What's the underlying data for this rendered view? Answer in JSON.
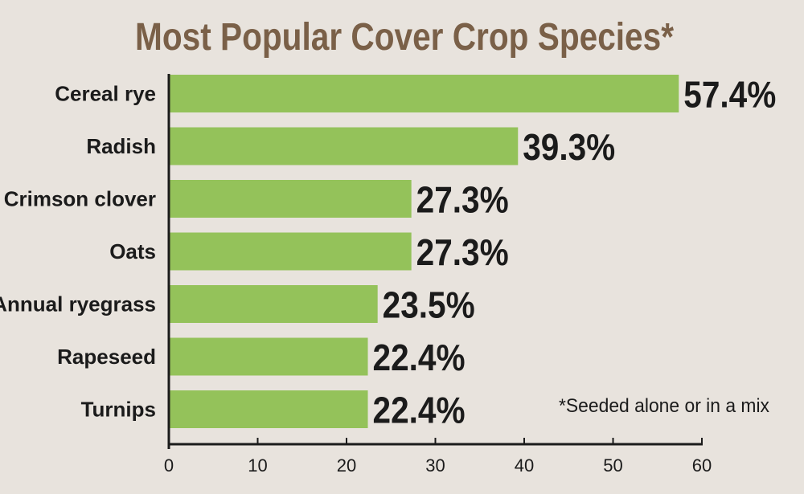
{
  "chart_data": {
    "type": "bar",
    "orientation": "horizontal",
    "title": "Most Popular Cover Crop Species*",
    "footnote": "*Seeded alone or in a mix",
    "categories": [
      "Cereal rye",
      "Radish",
      "Crimson clover",
      "Oats",
      "Annual ryegrass",
      "Rapeseed",
      "Turnips"
    ],
    "values": [
      57.4,
      39.3,
      27.3,
      27.3,
      23.5,
      22.4,
      22.4
    ],
    "value_labels": [
      "57.4%",
      "39.3%",
      "27.3%",
      "27.3%",
      "23.5%",
      "22.4%",
      "22.4%"
    ],
    "xlim": [
      0,
      60
    ],
    "x_ticks": [
      "0",
      "10",
      "20",
      "30",
      "40",
      "50",
      "60"
    ],
    "grid": false,
    "legend": "none"
  },
  "colors": {
    "background": "#e8e3dd",
    "title": "#7a6048",
    "bar": "#94c25a",
    "text": "#1b1b1b",
    "axis": "#1b1b1b"
  }
}
